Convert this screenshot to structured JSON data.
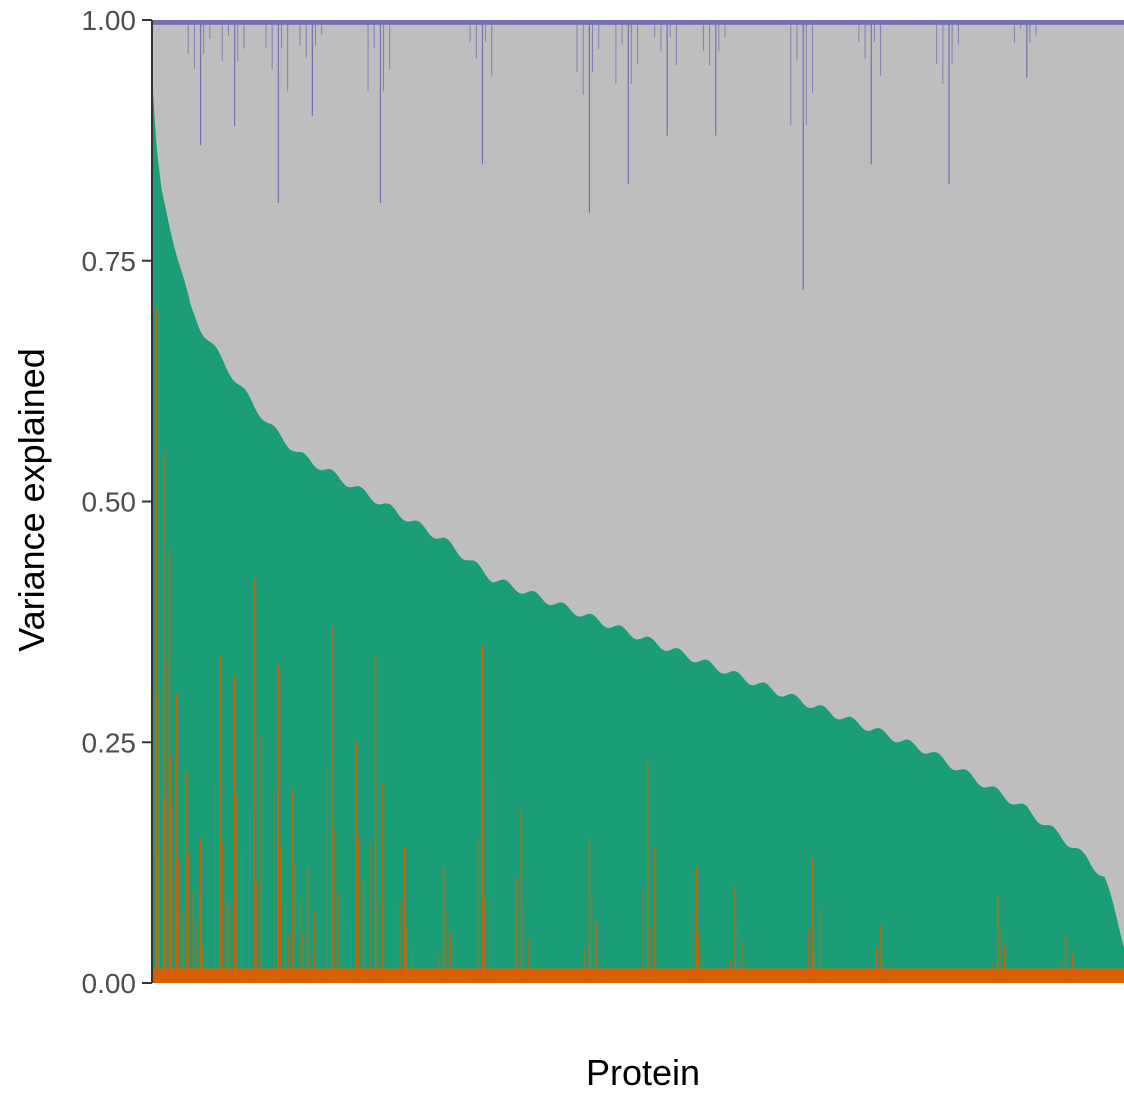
{
  "chart_data": {
    "type": "area",
    "title": "",
    "xlabel": "Protein",
    "ylabel": "Variance explained",
    "ylim": [
      0,
      1
    ],
    "yticks": [
      {
        "value": 0.0,
        "label": "0.00"
      },
      {
        "value": 0.25,
        "label": "0.25"
      },
      {
        "value": 0.5,
        "label": "0.50"
      },
      {
        "value": 0.75,
        "label": "0.75"
      },
      {
        "value": 1.0,
        "label": "1.00"
      }
    ],
    "x_axis_ticks_shown": false,
    "grid": false,
    "legend": "none",
    "colors": {
      "residual": "#bebebe",
      "green": "#1b9e77",
      "orange": "#d95f02",
      "purple": "#7570b3",
      "axis": "#333333"
    },
    "n_proteins": 1000,
    "series": [
      {
        "key": "green",
        "description_source": "sorted decreasing cumulative share; values at protein fraction",
        "x_fraction": [
          0.0,
          0.005,
          0.01,
          0.02,
          0.03,
          0.04,
          0.05,
          0.07,
          0.09,
          0.12,
          0.15,
          0.2,
          0.25,
          0.3,
          0.35,
          0.4,
          0.45,
          0.5,
          0.55,
          0.6,
          0.65,
          0.7,
          0.75,
          0.8,
          0.85,
          0.9,
          0.95,
          0.98,
          1.0
        ],
        "values": [
          0.94,
          0.86,
          0.82,
          0.78,
          0.74,
          0.7,
          0.68,
          0.65,
          0.62,
          0.58,
          0.55,
          0.52,
          0.49,
          0.46,
          0.42,
          0.4,
          0.38,
          0.36,
          0.34,
          0.32,
          0.3,
          0.28,
          0.26,
          0.24,
          0.21,
          0.18,
          0.14,
          0.11,
          0.04
        ]
      },
      {
        "key": "orange",
        "baseline": 0.015,
        "spikes": [
          {
            "x_fraction": 0.005,
            "value": 0.7
          },
          {
            "x_fraction": 0.012,
            "value": 0.55
          },
          {
            "x_fraction": 0.018,
            "value": 0.45
          },
          {
            "x_fraction": 0.025,
            "value": 0.3
          },
          {
            "x_fraction": 0.035,
            "value": 0.22
          },
          {
            "x_fraction": 0.05,
            "value": 0.15
          },
          {
            "x_fraction": 0.07,
            "value": 0.34
          },
          {
            "x_fraction": 0.085,
            "value": 0.32
          },
          {
            "x_fraction": 0.105,
            "value": 0.42
          },
          {
            "x_fraction": 0.13,
            "value": 0.33
          },
          {
            "x_fraction": 0.145,
            "value": 0.2
          },
          {
            "x_fraction": 0.16,
            "value": 0.12
          },
          {
            "x_fraction": 0.185,
            "value": 0.37
          },
          {
            "x_fraction": 0.21,
            "value": 0.25
          },
          {
            "x_fraction": 0.23,
            "value": 0.34
          },
          {
            "x_fraction": 0.26,
            "value": 0.14
          },
          {
            "x_fraction": 0.3,
            "value": 0.12
          },
          {
            "x_fraction": 0.34,
            "value": 0.35
          },
          {
            "x_fraction": 0.38,
            "value": 0.18
          },
          {
            "x_fraction": 0.45,
            "value": 0.15
          },
          {
            "x_fraction": 0.51,
            "value": 0.23
          },
          {
            "x_fraction": 0.56,
            "value": 0.12
          },
          {
            "x_fraction": 0.6,
            "value": 0.1
          },
          {
            "x_fraction": 0.68,
            "value": 0.13
          },
          {
            "x_fraction": 0.75,
            "value": 0.06
          },
          {
            "x_fraction": 0.87,
            "value": 0.09
          },
          {
            "x_fraction": 0.94,
            "value": 0.05
          }
        ]
      },
      {
        "key": "purple",
        "top": 1.0,
        "dips": [
          {
            "x_fraction": 0.05,
            "depth": 0.13
          },
          {
            "x_fraction": 0.085,
            "depth": 0.11
          },
          {
            "x_fraction": 0.13,
            "depth": 0.19
          },
          {
            "x_fraction": 0.165,
            "depth": 0.1
          },
          {
            "x_fraction": 0.235,
            "depth": 0.19
          },
          {
            "x_fraction": 0.34,
            "depth": 0.15
          },
          {
            "x_fraction": 0.45,
            "depth": 0.2
          },
          {
            "x_fraction": 0.49,
            "depth": 0.17
          },
          {
            "x_fraction": 0.53,
            "depth": 0.12
          },
          {
            "x_fraction": 0.58,
            "depth": 0.12
          },
          {
            "x_fraction": 0.67,
            "depth": 0.28
          },
          {
            "x_fraction": 0.74,
            "depth": 0.15
          },
          {
            "x_fraction": 0.82,
            "depth": 0.17
          },
          {
            "x_fraction": 0.9,
            "depth": 0.06
          }
        ]
      }
    ]
  }
}
